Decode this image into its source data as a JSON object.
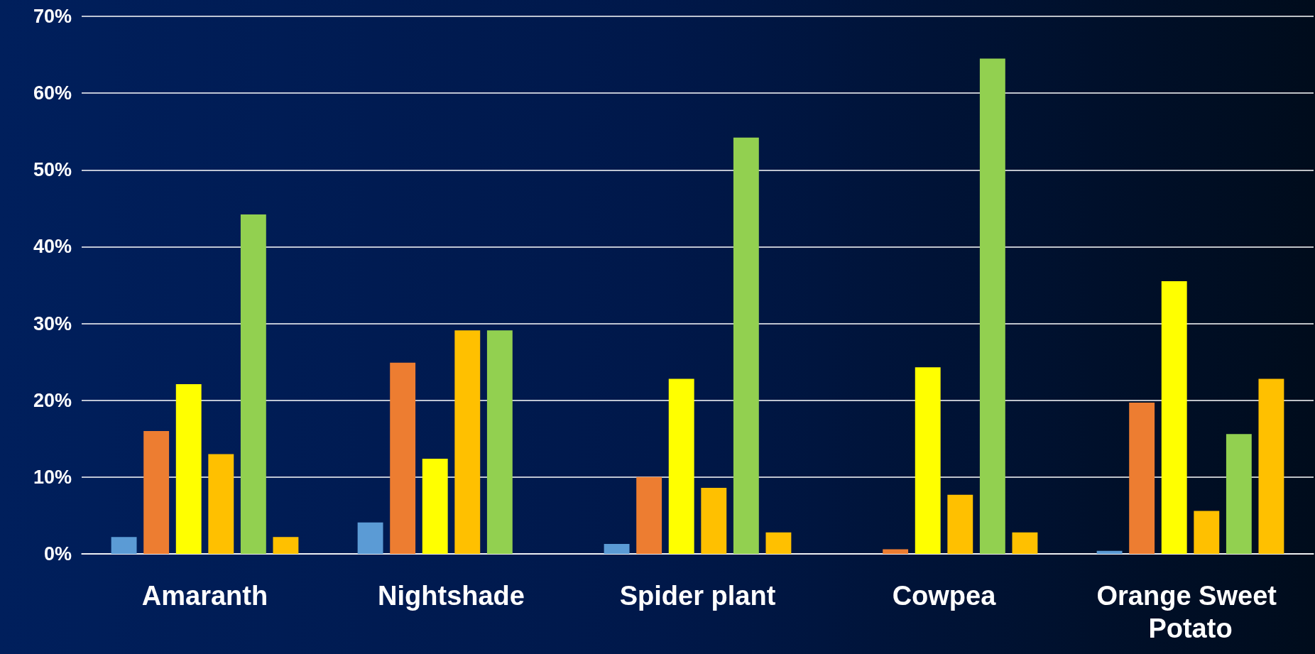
{
  "chart_data": {
    "type": "bar",
    "categories": [
      "Amaranth",
      "Nightshade",
      "Spider plant",
      "Cowpea",
      "Orange Sweet Potato"
    ],
    "series": [
      {
        "color": "#5b9bd5",
        "values": [
          2.2,
          4.1,
          1.3,
          0,
          0.4
        ]
      },
      {
        "color": "#ed7d31",
        "values": [
          16.0,
          24.9,
          10.0,
          0.6,
          19.7
        ]
      },
      {
        "color": "#ffff00",
        "values": [
          22.1,
          12.4,
          22.8,
          24.3,
          35.5
        ]
      },
      {
        "color": "#ffc000",
        "values": [
          13.0,
          29.1,
          8.6,
          7.7,
          5.6
        ]
      },
      {
        "color": "#92d050",
        "values": [
          44.2,
          29.1,
          54.2,
          64.5,
          15.6
        ]
      },
      {
        "color": "#ffc000",
        "values": [
          2.2,
          null,
          2.8,
          2.8,
          22.8
        ]
      }
    ],
    "ylim": [
      0,
      70
    ],
    "yticks": [
      {
        "value": 0,
        "label": "0%"
      },
      {
        "value": 10,
        "label": "10%"
      },
      {
        "value": 20,
        "label": "20%"
      },
      {
        "value": 30,
        "label": "30%"
      },
      {
        "value": 40,
        "label": "40%"
      },
      {
        "value": 50,
        "label": "50%"
      },
      {
        "value": 60,
        "label": "60%"
      },
      {
        "value": 70,
        "label": "70%"
      }
    ],
    "grid": "y"
  }
}
